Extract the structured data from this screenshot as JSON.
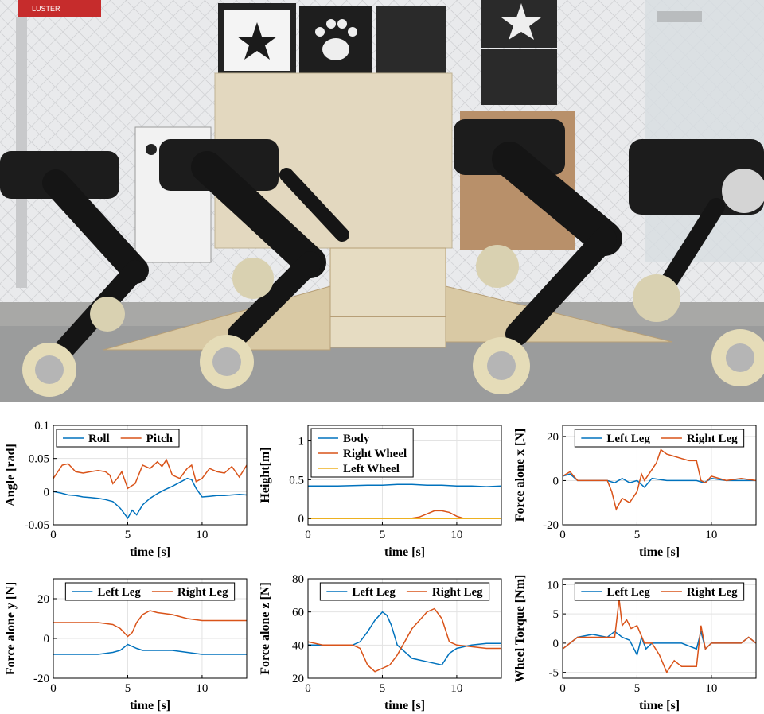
{
  "colors": {
    "blue": "#0072BD",
    "red": "#D95319",
    "yellow": "#EDB120",
    "grid": "#e3e3e3"
  },
  "photo": {
    "description_icon": "photo-icon",
    "labels": [
      "LUSTER"
    ]
  },
  "chart_data": [
    {
      "type": "line",
      "xlabel": "time [s]",
      "ylabel": "Angle [rad]",
      "xlim": [
        0,
        13
      ],
      "ylim": [
        -0.05,
        0.1
      ],
      "xticks": [
        0,
        5,
        10
      ],
      "xtick_labels": [
        "0",
        "5",
        "10"
      ],
      "yticks": [
        -0.05,
        0,
        0.05,
        0.1
      ],
      "ytick_labels": [
        "-0.05",
        "0",
        "0.05",
        "0.1"
      ],
      "grid": true,
      "legend": "top-left",
      "legend_layout": "horizontal",
      "series": [
        {
          "name": "Roll",
          "color": "#0072BD",
          "x": [
            0,
            0.5,
            1,
            1.5,
            2,
            2.5,
            3,
            3.5,
            4,
            4.5,
            5,
            5.3,
            5.6,
            6,
            6.5,
            7,
            7.5,
            8,
            8.5,
            9,
            9.3,
            9.6,
            10,
            10.5,
            11,
            11.5,
            12,
            12.5,
            13
          ],
          "y": [
            0.0,
            -0.002,
            -0.005,
            -0.006,
            -0.008,
            -0.009,
            -0.01,
            -0.012,
            -0.015,
            -0.025,
            -0.04,
            -0.028,
            -0.035,
            -0.02,
            -0.01,
            -0.003,
            0.003,
            0.008,
            0.014,
            0.02,
            0.018,
            0.005,
            -0.008,
            -0.007,
            -0.006,
            -0.006,
            -0.005,
            -0.004,
            -0.005
          ]
        },
        {
          "name": "Pitch",
          "color": "#D95319",
          "x": [
            0,
            0.3,
            0.6,
            1,
            1.5,
            2,
            2.5,
            3,
            3.5,
            3.8,
            4,
            4.3,
            4.6,
            5,
            5.5,
            6,
            6.5,
            7,
            7.3,
            7.6,
            8,
            8.5,
            9,
            9.3,
            9.6,
            10,
            10.5,
            11,
            11.5,
            12,
            12.5,
            13
          ],
          "y": [
            0.02,
            0.03,
            0.04,
            0.042,
            0.03,
            0.028,
            0.03,
            0.032,
            0.03,
            0.025,
            0.012,
            0.02,
            0.03,
            0.005,
            0.012,
            0.04,
            0.035,
            0.045,
            0.038,
            0.048,
            0.025,
            0.02,
            0.035,
            0.04,
            0.015,
            0.02,
            0.035,
            0.03,
            0.028,
            0.038,
            0.022,
            0.04
          ]
        }
      ]
    },
    {
      "type": "line",
      "xlabel": "time [s]",
      "ylabel": "Height[m]",
      "xlim": [
        0,
        13
      ],
      "ylim": [
        -0.08,
        1.2
      ],
      "xticks": [
        0,
        5,
        10
      ],
      "xtick_labels": [
        "0",
        "5",
        "10"
      ],
      "yticks": [
        0,
        0.5,
        1
      ],
      "ytick_labels": [
        "0",
        "0.5",
        "1"
      ],
      "grid": true,
      "legend": "top-left",
      "legend_layout": "vertical",
      "series": [
        {
          "name": "Body",
          "color": "#0072BD",
          "x": [
            0,
            2,
            4,
            5,
            6,
            7,
            8,
            9,
            10,
            11,
            12,
            13
          ],
          "y": [
            0.42,
            0.42,
            0.43,
            0.43,
            0.44,
            0.44,
            0.43,
            0.43,
            0.42,
            0.42,
            0.41,
            0.42
          ]
        },
        {
          "name": "Right Wheel",
          "color": "#D95319",
          "x": [
            0,
            6,
            7,
            7.5,
            8,
            8.5,
            9,
            9.5,
            10,
            10.5,
            13
          ],
          "y": [
            0.0,
            0.0,
            0.005,
            0.02,
            0.06,
            0.1,
            0.1,
            0.08,
            0.03,
            0.0,
            0.0
          ]
        },
        {
          "name": "Left Wheel",
          "color": "#EDB120",
          "x": [
            0,
            13
          ],
          "y": [
            0.0,
            0.0
          ]
        }
      ]
    },
    {
      "type": "line",
      "xlabel": "time [s]",
      "ylabel": "Force alone x [N]",
      "xlim": [
        0,
        13
      ],
      "ylim": [
        -20,
        25
      ],
      "xticks": [
        0,
        5,
        10
      ],
      "xtick_labels": [
        "0",
        "5",
        "10"
      ],
      "yticks": [
        -20,
        0,
        20
      ],
      "ytick_labels": [
        "-20",
        "0",
        "20"
      ],
      "grid": true,
      "legend": "top",
      "legend_layout": "horizontal",
      "series": [
        {
          "name": "Left Leg",
          "color": "#0072BD",
          "x": [
            0,
            0.5,
            1,
            2,
            3,
            3.5,
            4,
            4.5,
            5,
            5.5,
            6,
            7,
            8,
            9,
            9.5,
            10,
            11,
            12,
            13
          ],
          "y": [
            2,
            3,
            0,
            0,
            0,
            -1,
            1,
            -1,
            0,
            -3,
            1,
            0,
            0,
            0,
            -1,
            1,
            0,
            0,
            0
          ]
        },
        {
          "name": "Right Leg",
          "color": "#D95319",
          "x": [
            0,
            0.5,
            1,
            2,
            3,
            3.3,
            3.6,
            4,
            4.5,
            5,
            5.3,
            5.5,
            6,
            6.3,
            6.6,
            7,
            7.5,
            8,
            8.5,
            9,
            9.3,
            9.6,
            10,
            11,
            12,
            13
          ],
          "y": [
            2,
            4,
            0,
            0,
            0,
            -5,
            -13,
            -8,
            -10,
            -5,
            3,
            0,
            5,
            8,
            14,
            12,
            11,
            10,
            9,
            9,
            0,
            -1,
            2,
            0,
            1,
            0
          ]
        }
      ]
    },
    {
      "type": "line",
      "xlabel": "time [s]",
      "ylabel": "Force alone y [N]",
      "xlim": [
        0,
        13
      ],
      "ylim": [
        -20,
        30
      ],
      "xticks": [
        0,
        5,
        10
      ],
      "xtick_labels": [
        "0",
        "5",
        "10"
      ],
      "yticks": [
        -20,
        0,
        20
      ],
      "ytick_labels": [
        "-20",
        "0",
        "20"
      ],
      "grid": true,
      "legend": "top",
      "legend_layout": "horizontal",
      "series": [
        {
          "name": "Left Leg",
          "color": "#0072BD",
          "x": [
            0,
            1,
            2,
            3,
            4,
            4.5,
            5,
            5.3,
            5.6,
            6,
            7,
            8,
            9,
            10,
            11,
            12,
            13
          ],
          "y": [
            -8,
            -8,
            -8,
            -8,
            -7,
            -6,
            -3,
            -4,
            -5,
            -6,
            -6,
            -6,
            -7,
            -8,
            -8,
            -8,
            -8
          ]
        },
        {
          "name": "Right Leg",
          "color": "#D95319",
          "x": [
            0,
            1,
            2,
            3,
            4,
            4.5,
            5,
            5.3,
            5.6,
            6,
            6.5,
            7,
            8,
            9,
            10,
            11,
            12,
            13
          ],
          "y": [
            8,
            8,
            8,
            8,
            7,
            5,
            1,
            3,
            8,
            12,
            14,
            13,
            12,
            10,
            9,
            9,
            9,
            9
          ]
        }
      ]
    },
    {
      "type": "line",
      "xlabel": "time [s]",
      "ylabel": "Force alone z [N]",
      "xlim": [
        0,
        13
      ],
      "ylim": [
        20,
        80
      ],
      "xticks": [
        0,
        5,
        10
      ],
      "xtick_labels": [
        "0",
        "5",
        "10"
      ],
      "yticks": [
        20,
        40,
        60,
        80
      ],
      "ytick_labels": [
        "20",
        "40",
        "60",
        "80"
      ],
      "grid": true,
      "legend": "top",
      "legend_layout": "horizontal",
      "series": [
        {
          "name": "Left Leg",
          "color": "#0072BD",
          "x": [
            0,
            1,
            2,
            3,
            3.5,
            4,
            4.5,
            5,
            5.3,
            5.6,
            6,
            7,
            8,
            9,
            9.5,
            10,
            11,
            12,
            13
          ],
          "y": [
            40,
            40,
            40,
            40,
            42,
            48,
            55,
            60,
            58,
            52,
            40,
            32,
            30,
            28,
            35,
            38,
            40,
            41,
            41
          ]
        },
        {
          "name": "Right Leg",
          "color": "#D95319",
          "x": [
            0,
            1,
            2,
            3,
            3.5,
            4,
            4.5,
            5,
            5.5,
            6,
            6.5,
            7,
            7.5,
            8,
            8.5,
            9,
            9.5,
            10,
            11,
            12,
            13
          ],
          "y": [
            42,
            40,
            40,
            40,
            38,
            28,
            24,
            26,
            28,
            34,
            42,
            50,
            55,
            60,
            62,
            56,
            42,
            40,
            39,
            38,
            38
          ]
        }
      ]
    },
    {
      "type": "line",
      "xlabel": "time [s]",
      "ylabel": "Wheel Torque [Nm]",
      "xlim": [
        0,
        13
      ],
      "ylim": [
        -6,
        11
      ],
      "xticks": [
        0,
        5,
        10
      ],
      "xtick_labels": [
        "0",
        "5",
        "10"
      ],
      "yticks": [
        -5,
        0,
        5,
        10
      ],
      "ytick_labels": [
        "-5",
        "0",
        "5",
        "10"
      ],
      "grid": true,
      "legend": "top",
      "legend_layout": "horizontal",
      "series": [
        {
          "name": "Left Leg",
          "color": "#0072BD",
          "x": [
            0,
            0.5,
            1,
            2,
            3,
            3.5,
            4,
            4.5,
            5,
            5.3,
            5.6,
            6,
            7,
            8,
            9,
            9.3,
            9.6,
            10,
            11,
            12,
            12.5,
            13
          ],
          "y": [
            -1,
            0,
            1,
            1.5,
            1,
            2,
            1,
            0.5,
            -2,
            1,
            -1,
            0,
            0,
            0,
            -1,
            2,
            -1,
            0,
            0,
            0,
            1,
            0
          ]
        },
        {
          "name": "Right Leg",
          "color": "#D95319",
          "x": [
            0,
            0.5,
            1,
            2,
            3,
            3.5,
            3.8,
            4,
            4.3,
            4.6,
            5,
            5.5,
            6,
            6.5,
            7,
            7.5,
            8,
            8.5,
            9,
            9.3,
            9.6,
            10,
            11,
            12,
            12.5,
            13
          ],
          "y": [
            -1,
            0,
            1,
            1,
            1,
            1,
            7.5,
            3,
            4,
            2.5,
            3,
            0,
            0,
            -2,
            -5,
            -3,
            -4,
            -4,
            -4,
            3,
            -1,
            0,
            0,
            0,
            1,
            0
          ]
        }
      ]
    }
  ]
}
